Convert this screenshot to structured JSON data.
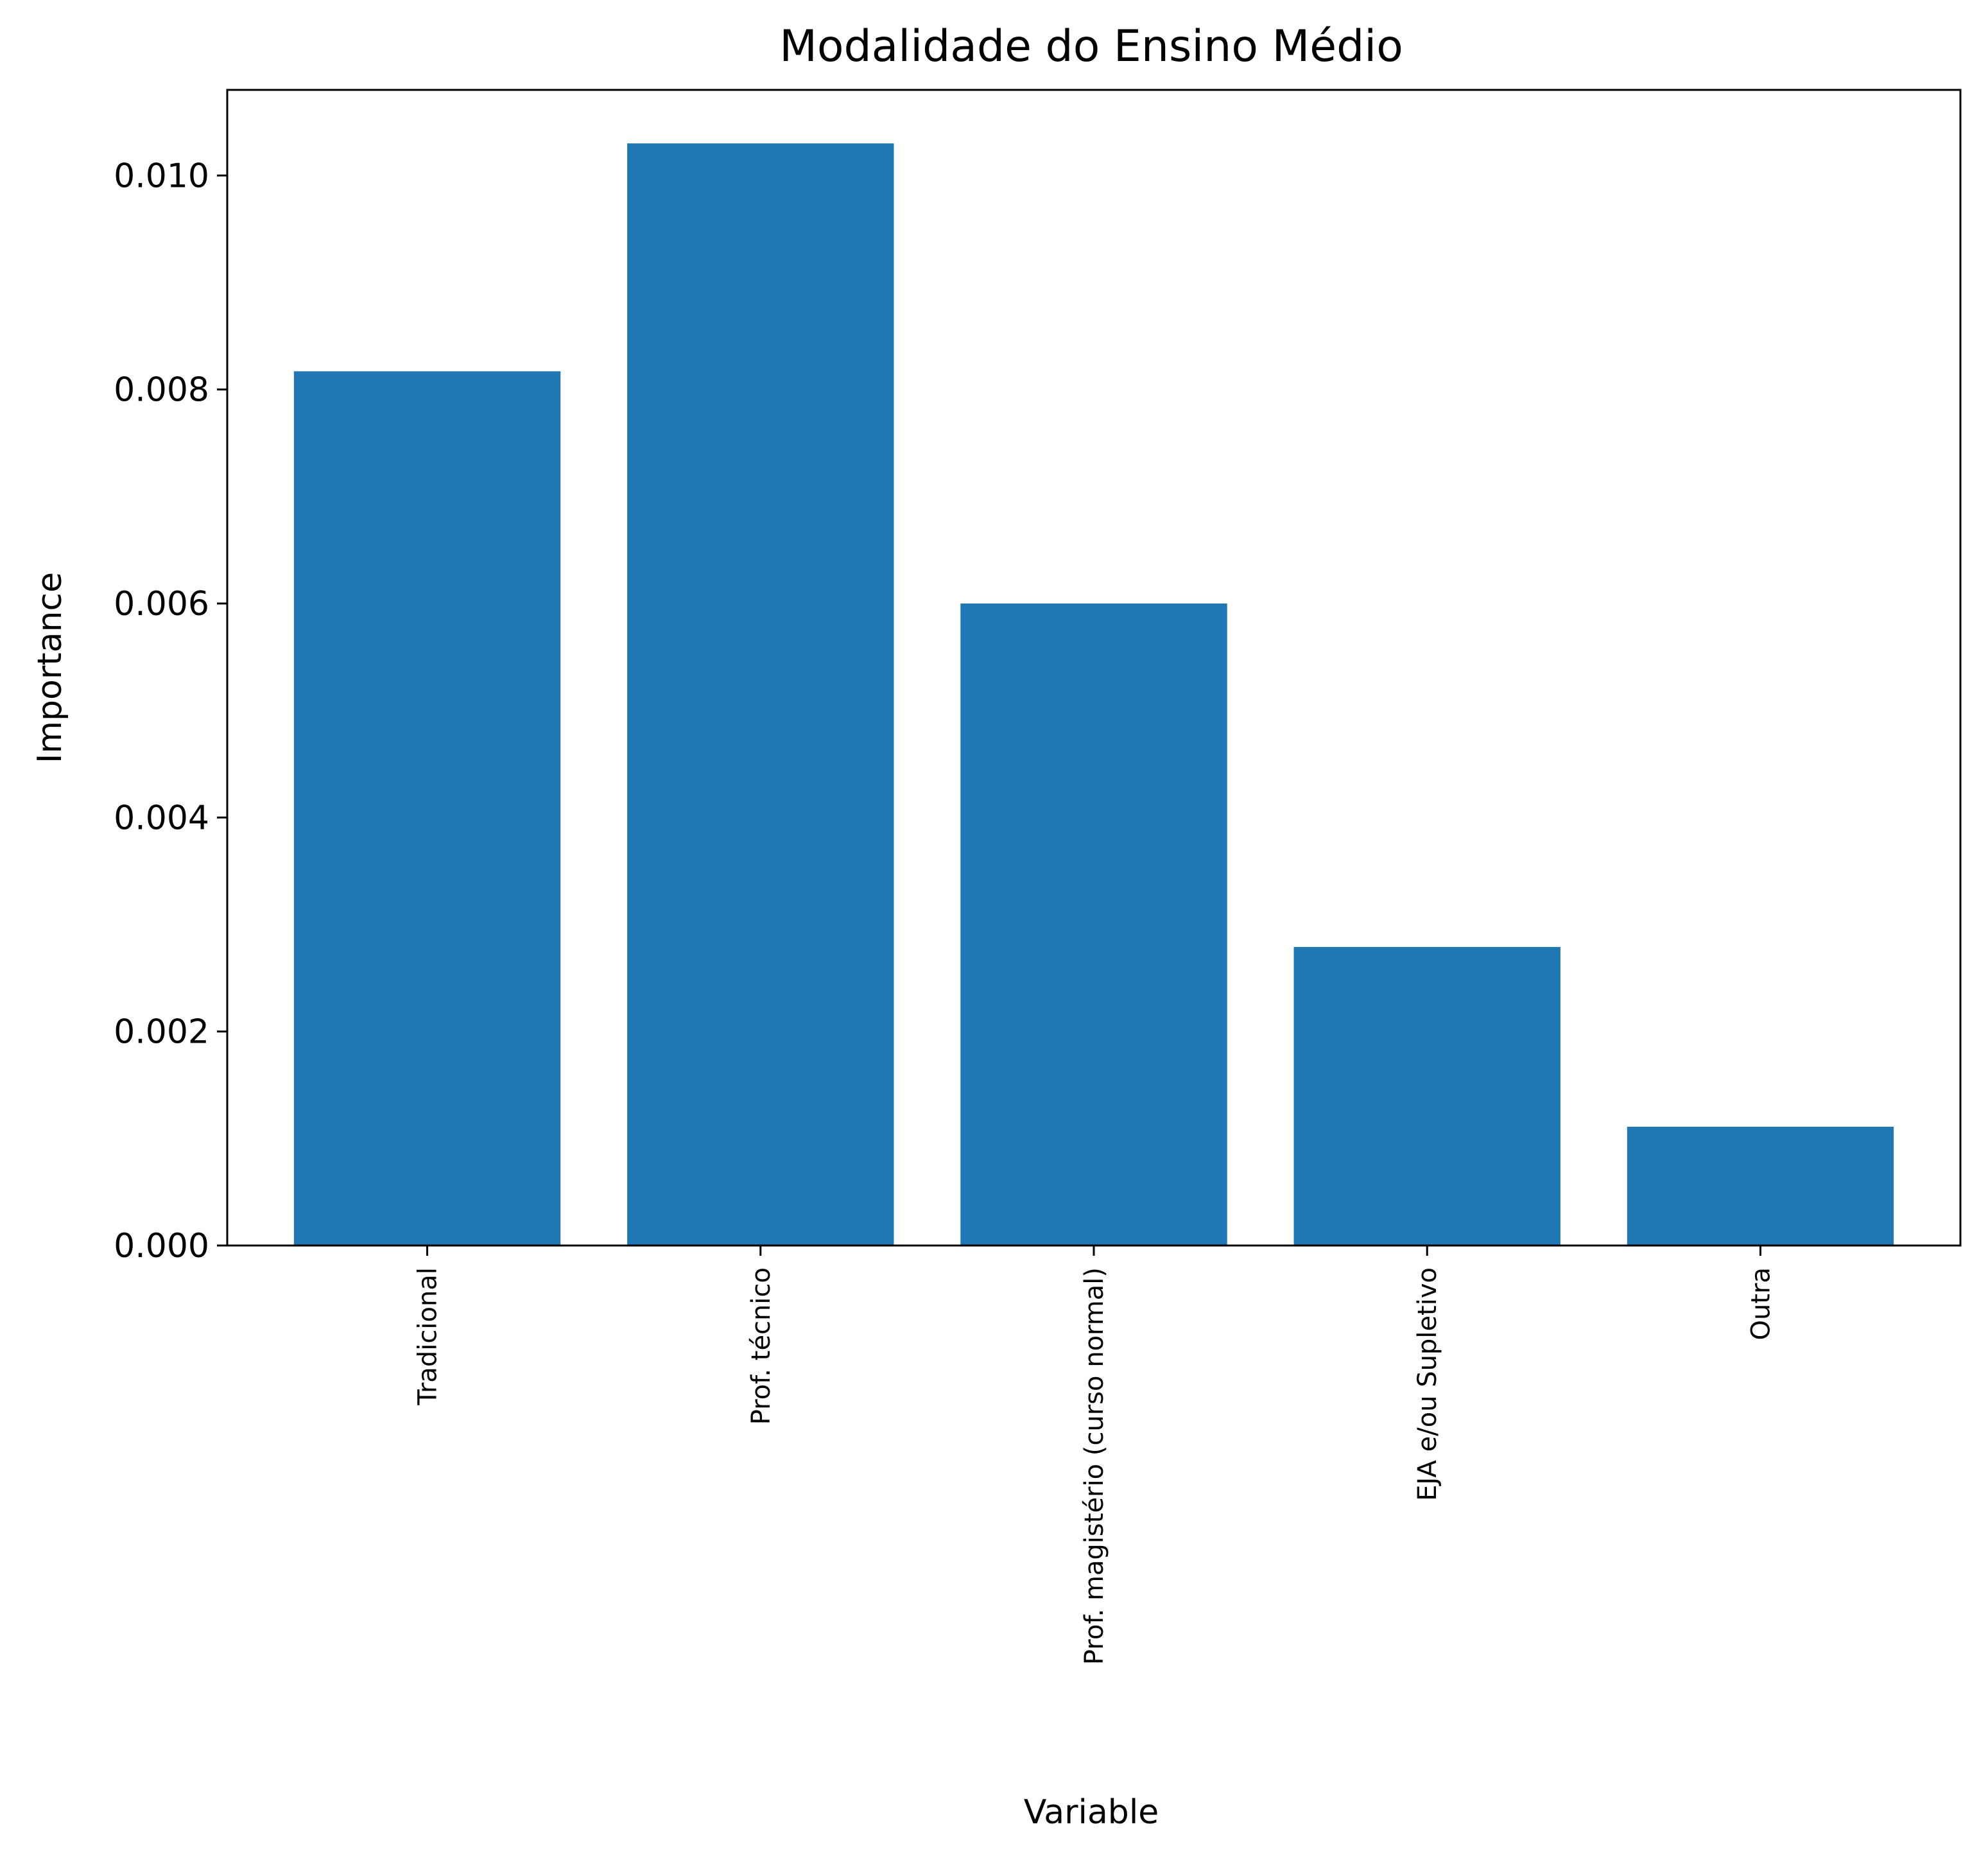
{
  "chart_data": {
    "type": "bar",
    "title": "Modalidade do Ensino Médio",
    "xlabel": "Variable",
    "ylabel": "Importance",
    "categories": [
      "Tradicional",
      "Prof. técnico",
      "Prof. magistério (curso normal)",
      "EJA e/ou Supletivo",
      "Outra"
    ],
    "values": [
      0.00817,
      0.0103,
      0.006,
      0.00279,
      0.00111
    ],
    "ylim": [
      0,
      0.0108
    ],
    "yticks": [
      "0.000",
      "0.002",
      "0.004",
      "0.006",
      "0.008",
      "0.010"
    ],
    "ytick_values": [
      0,
      0.002,
      0.004,
      0.006,
      0.008,
      0.01
    ],
    "grid": false,
    "bar_color": "#1f77b4"
  }
}
